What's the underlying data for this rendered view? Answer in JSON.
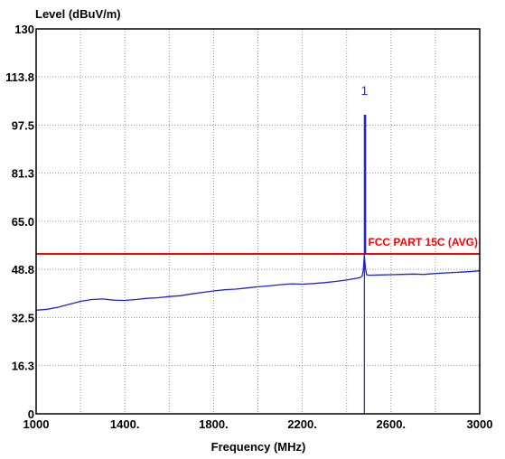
{
  "chart_data": {
    "type": "line",
    "xlabel": "Frequency (MHz)",
    "ylabel": "Level (dBuV/m)",
    "xlim": [
      1000,
      3000
    ],
    "ylim": [
      0,
      130
    ],
    "x_ticks": [
      1000,
      1400,
      1800,
      2200,
      2600,
      3000
    ],
    "x_tick_labels": [
      "1000",
      "1400.",
      "1800.",
      "2200.",
      "2600.",
      "3000"
    ],
    "y_ticks": [
      0,
      16.3,
      32.5,
      48.8,
      65.0,
      81.3,
      97.5,
      113.8,
      130
    ],
    "y_tick_labels": [
      "0",
      "16.3",
      "32.5",
      "48.8",
      "65.0",
      "81.3",
      "97.5",
      "113.8",
      "130"
    ],
    "grid": true,
    "series": [
      {
        "color": "#2222cc",
        "x": [
          1000,
          1050,
          1100,
          1150,
          1200,
          1250,
          1300,
          1350,
          1400,
          1450,
          1500,
          1550,
          1600,
          1650,
          1700,
          1750,
          1800,
          1850,
          1900,
          1950,
          2000,
          2050,
          2100,
          2150,
          2200,
          2250,
          2300,
          2350,
          2400,
          2430,
          2460,
          2470,
          2475,
          2480,
          2485,
          2490,
          2500,
          2550,
          2600,
          2650,
          2700,
          2750,
          2800,
          2850,
          2900,
          2950,
          3000
        ],
        "values": [
          35.0,
          35.3,
          36.0,
          37.0,
          38.0,
          38.6,
          38.8,
          38.4,
          38.3,
          38.6,
          39.0,
          39.2,
          39.6,
          39.9,
          40.5,
          41.0,
          41.5,
          41.9,
          42.1,
          42.5,
          42.9,
          43.2,
          43.6,
          43.9,
          43.8,
          44.0,
          44.3,
          44.7,
          45.2,
          45.6,
          46.0,
          46.5,
          48.5,
          53.5,
          49.0,
          47.0,
          46.8,
          46.9,
          47.0,
          47.1,
          47.2,
          47.1,
          47.4,
          47.6,
          47.8,
          48.0,
          48.3
        ]
      },
      {
        "name": "FCC PART 15C (AVG)",
        "color": "#ff0000",
        "x": [
          1000,
          3000
        ],
        "values": [
          54.0,
          54.0
        ]
      }
    ],
    "annotations": [
      {
        "label": "FCC PART 15C (AVG)",
        "color": "#ff0000"
      }
    ],
    "markers": [
      {
        "label": "1",
        "x": 2480,
        "peak": 101.0,
        "color": "#2222cc"
      }
    ]
  }
}
